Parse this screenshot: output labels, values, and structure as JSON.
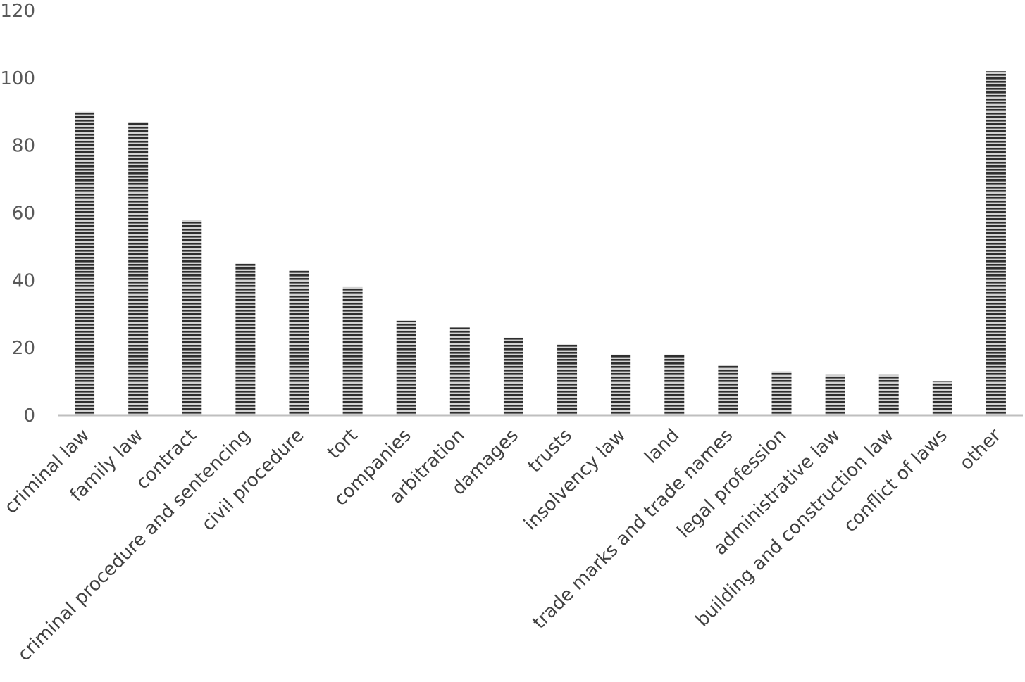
{
  "chart_data": {
    "type": "bar",
    "categories": [
      "criminal law",
      "family law",
      "contract",
      "criminal procedure and sentencing",
      "civil procedure",
      "tort",
      "companies",
      "arbitration",
      "damages",
      "trusts",
      "insolvency law",
      "land",
      "trade marks and trade names",
      "legal profession",
      "administrative law",
      "building and construction law",
      "conflict of laws",
      "other"
    ],
    "values": [
      90,
      87,
      58,
      45,
      43,
      38,
      28,
      26,
      23,
      21,
      18,
      18,
      15,
      13,
      12,
      12,
      10,
      102
    ],
    "ylim": [
      0,
      120
    ],
    "yticks": [
      0,
      20,
      40,
      60,
      80,
      100,
      120
    ],
    "grid": false,
    "legend": "none",
    "bar_style": "horizontal-striped",
    "colors": {
      "bar_dark": "#333333",
      "bar_light": "#cfcfcf",
      "axis": "#bfbfbf",
      "tick_text": "#595959"
    }
  }
}
